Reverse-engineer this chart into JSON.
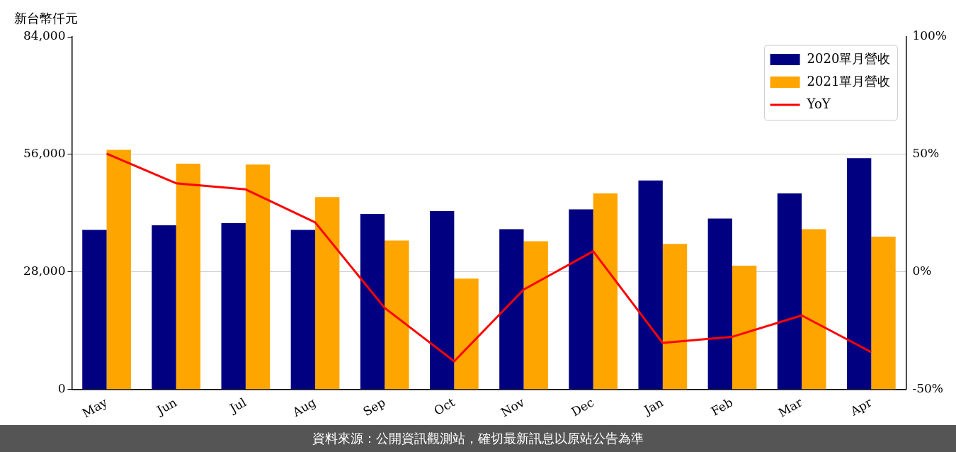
{
  "chart_data": {
    "type": "bar",
    "ylabel": "新台幣仟元",
    "categories": [
      "May",
      "Jun",
      "Jul",
      "Aug",
      "Sep",
      "Oct",
      "Nov",
      "Dec",
      "Jan",
      "Feb",
      "Mar",
      "Apr"
    ],
    "series": [
      {
        "name": "2020單月營收",
        "color": "#000080",
        "values": [
          38000,
          39100,
          39600,
          38000,
          41800,
          42500,
          38200,
          42900,
          49800,
          40700,
          46700,
          55100
        ]
      },
      {
        "name": "2021單月營收",
        "color": "#ffa500",
        "values": [
          57100,
          53800,
          53600,
          45800,
          35500,
          26400,
          35300,
          46700,
          34700,
          29500,
          38200,
          36400
        ]
      },
      {
        "name": "YoY",
        "type": "line",
        "axis": "y2",
        "color": "#ff0000",
        "values": [
          50.3,
          37.7,
          35.1,
          21.1,
          -15.3,
          -38,
          -7.5,
          8.8,
          -30.2,
          -27.6,
          -18.5,
          -34.1
        ]
      }
    ],
    "ylim": [
      0,
      84000
    ],
    "yticks": [
      0,
      {
        "value": 28000,
        "label": "28,000"
      },
      {
        "value": 56000,
        "label": "56,000"
      },
      {
        "value": 84000,
        "label": "84,000"
      }
    ],
    "y2lim": [
      -50,
      100
    ],
    "y2ticks": [
      {
        "value": -50,
        "label": "-50%"
      },
      {
        "value": 0,
        "label": "0%"
      },
      {
        "value": 50,
        "label": "50%"
      },
      {
        "value": 100,
        "label": "100%"
      }
    ],
    "grid": "y",
    "legend": "top right",
    "marker": "none",
    "line_style": "solid",
    "annotations": [
      "資料來源：公開資訊觀測站，確切最新訊息以原站公告為準"
    ]
  }
}
